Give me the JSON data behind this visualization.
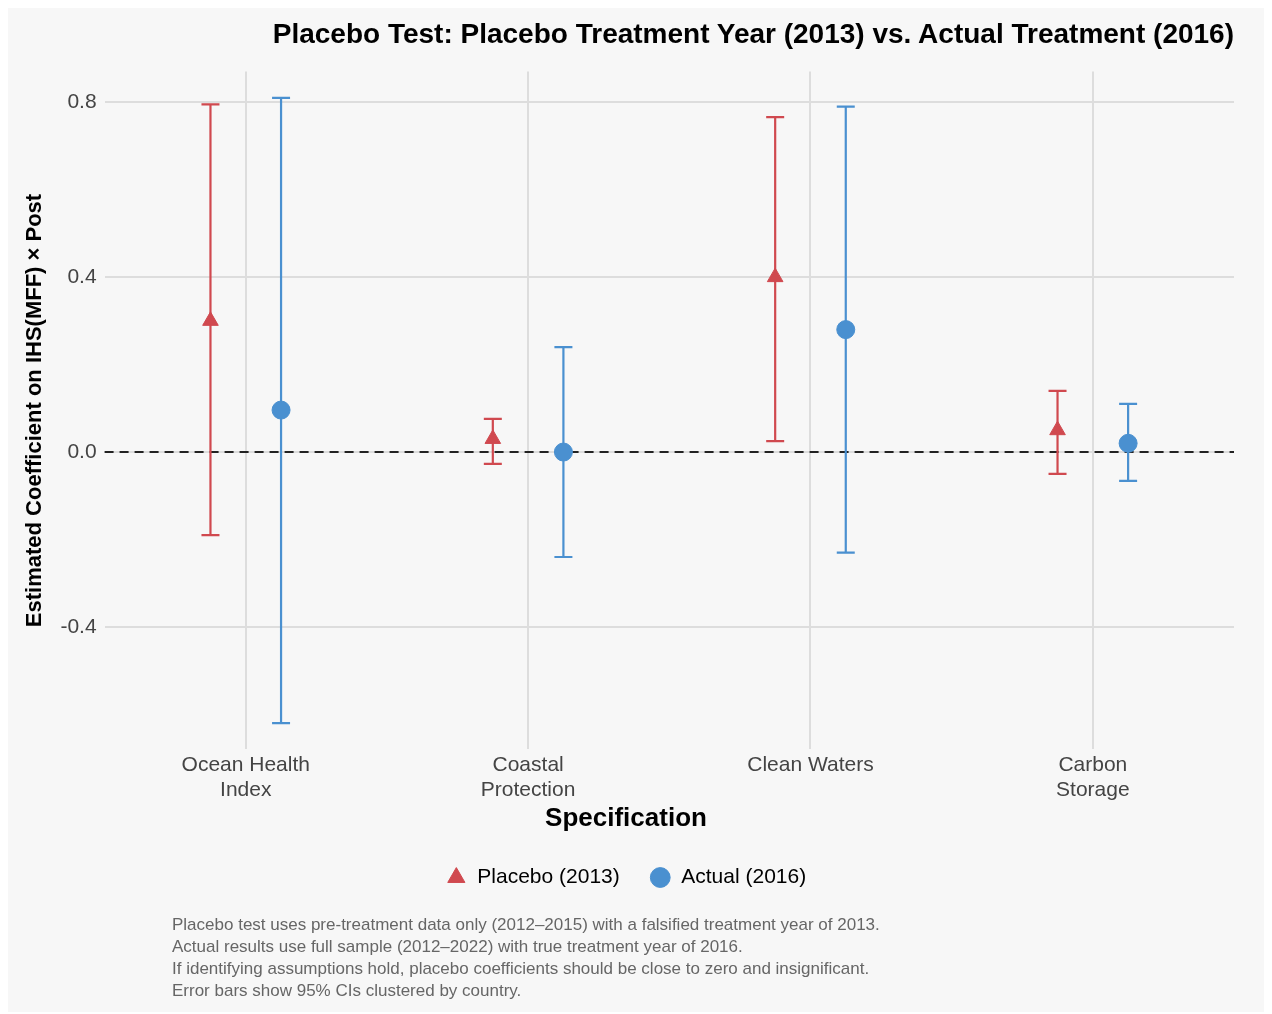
{
  "chart_data": {
    "type": "scatter",
    "title": "Placebo Test: Placebo Treatment Year (2013) vs. Actual Treatment (2016)",
    "ylabel": "Estimated Coefficient on IHS(MFF) × Post",
    "legend_title": "Specification",
    "legend": "bottom",
    "grid": true,
    "categories": [
      "Ocean Health\nIndex",
      "Coastal\nProtection",
      "Clean Waters",
      "Carbon\nStorage"
    ],
    "series": [
      {
        "name": "Placebo (2013)",
        "color": "#d0494f",
        "marker": "triangle",
        "values": [
          0.3,
          0.03,
          0.4,
          0.05
        ],
        "errors": [
          [
            -0.19,
            0.795
          ],
          [
            -0.027,
            0.076
          ],
          [
            0.025,
            0.766
          ],
          [
            -0.05,
            0.14
          ]
        ]
      },
      {
        "name": "Actual (2016)",
        "color": "#4a90d0",
        "marker": "circle",
        "values": [
          0.096,
          0.0,
          0.28,
          0.02
        ],
        "errors": [
          [
            -0.62,
            0.81
          ],
          [
            -0.24,
            0.24
          ],
          [
            -0.23,
            0.79
          ],
          [
            -0.066,
            0.11
          ]
        ]
      }
    ],
    "ylim": [
      -0.68,
      0.87
    ],
    "yticks": [
      0.8,
      0.4,
      {
        "value": 0,
        "label": "0.0"
      },
      -0.4
    ],
    "ref_lines": [
      {
        "axis": "y",
        "value": 0,
        "color": "#222222",
        "line_style": "dashed"
      }
    ],
    "annotations": [
      "Placebo test uses pre-treatment data only (2012–2015) with a falsified treatment year of 2013.",
      "Actual results use full sample (2012–2022) with true treatment year of 2016.",
      "If identifying assumptions hold, placebo coefficients should be close to zero and insignificant.",
      "Error bars show 95% CIs clustered by country."
    ]
  }
}
